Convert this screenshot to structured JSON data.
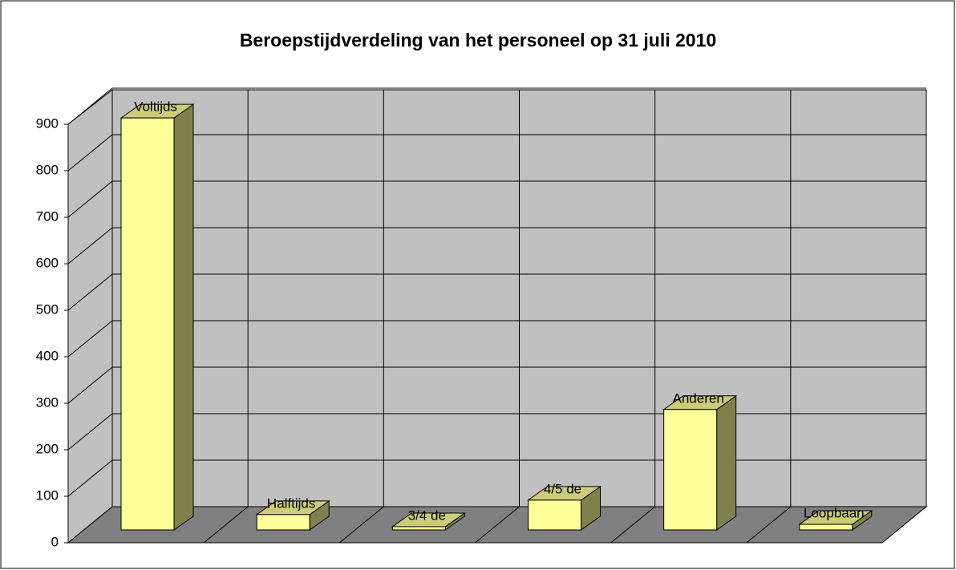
{
  "chart_data": {
    "type": "bar3d",
    "title": "Beroepstijdverdeling van het personeel op 31 juli 2010",
    "categories": [
      "Voltijds",
      "Halftijds",
      "3/4 de",
      "4/5 de",
      "Anderen",
      "Loopbaan"
    ],
    "values": [
      886,
      33,
      7,
      64,
      259,
      12
    ],
    "color": "#ffff99",
    "ylim": [
      0,
      900
    ],
    "yticks": [
      0,
      100,
      200,
      300,
      400,
      500,
      600,
      700,
      800,
      900
    ],
    "grid": true
  }
}
